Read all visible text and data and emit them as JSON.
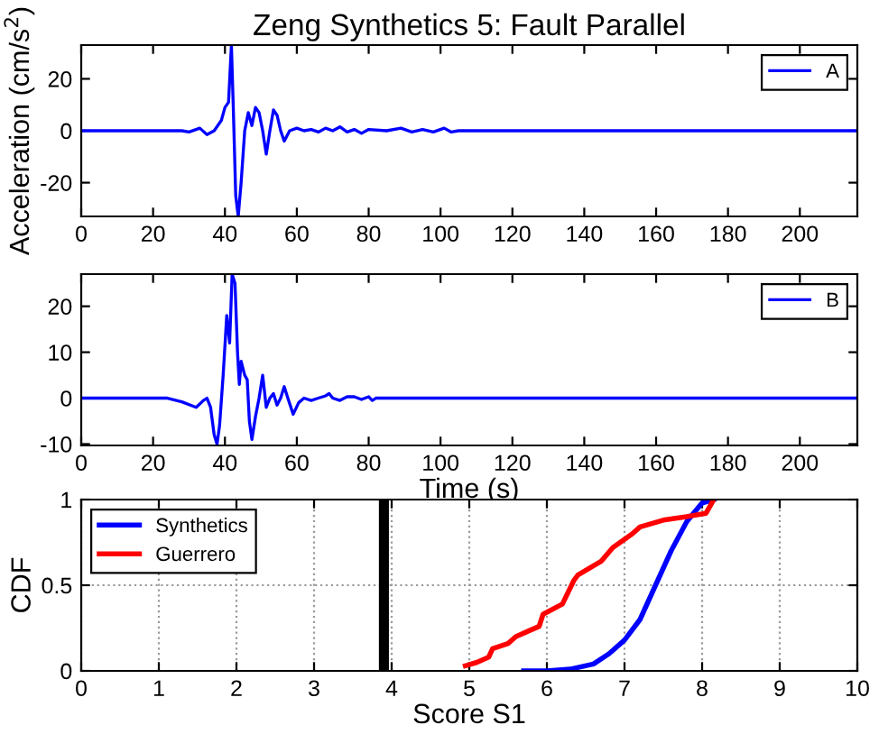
{
  "chart_data": [
    {
      "type": "line",
      "title": "Zeng Synthetics 5: Fault Parallel",
      "ylabel": "Acceleration (cm/s$^{2}$)",
      "xlim": [
        0,
        216
      ],
      "ylim": [
        -33,
        33
      ],
      "xticks": [
        0,
        20,
        40,
        60,
        80,
        100,
        120,
        140,
        160,
        180,
        200
      ],
      "yticks": [
        -20,
        0,
        20
      ],
      "legend": "top right",
      "grid": false,
      "series": [
        {
          "name": "A",
          "color": "#0000ff",
          "x": [
            0,
            28,
            30,
            33,
            35,
            37,
            39,
            40,
            41,
            41.8,
            42.3,
            43,
            43.7,
            44.5,
            45.5,
            46.5,
            47.5,
            48.5,
            49.5,
            50.5,
            51.5,
            52.5,
            53.5,
            54.5,
            55.5,
            56.5,
            58,
            60,
            62,
            64,
            66,
            68,
            70,
            72,
            74,
            76,
            78,
            80,
            85,
            89,
            92,
            95,
            98,
            101,
            103,
            105,
            216
          ],
          "values": [
            0,
            0,
            -0.5,
            1,
            -1.5,
            0,
            4,
            9,
            11,
            33,
            10,
            -25,
            -33,
            -20,
            0,
            7,
            2,
            9,
            7,
            0,
            -9,
            0,
            8,
            6,
            0,
            -4,
            0,
            1,
            0,
            0.5,
            -0.5,
            1,
            0,
            1.5,
            -0.5,
            0.5,
            -1,
            0.5,
            0,
            1,
            -0.5,
            0.5,
            -0.5,
            1,
            -0.5,
            0,
            0
          ]
        }
      ]
    },
    {
      "type": "line",
      "xlabel": "Time (s)",
      "xlim": [
        0,
        216
      ],
      "ylim": [
        -10.3,
        27
      ],
      "xticks": [
        0,
        20,
        40,
        60,
        80,
        100,
        120,
        140,
        160,
        180,
        200
      ],
      "yticks": [
        -10,
        0,
        10,
        20
      ],
      "legend": "top right",
      "grid": false,
      "series": [
        {
          "name": "B",
          "color": "#0000ff",
          "x": [
            0,
            24,
            28,
            32,
            34,
            35,
            36,
            37,
            37.8,
            38.5,
            39.5,
            40.5,
            41.3,
            42,
            42.8,
            43.5,
            44,
            44.5,
            45.5,
            46.2,
            46.8,
            47.5,
            48.5,
            49.5,
            50.5,
            51.5,
            52.5,
            53.5,
            54.5,
            55.5,
            56.5,
            57.5,
            59,
            60.5,
            62,
            64,
            66,
            68,
            69,
            70,
            72,
            74,
            76,
            78,
            80,
            81,
            82,
            216
          ],
          "values": [
            0,
            0,
            -0.8,
            -2,
            -0.5,
            0,
            -2,
            -8,
            -10,
            -6,
            5,
            18,
            12,
            27,
            25,
            10,
            3,
            8,
            5,
            4,
            -5,
            -9,
            -4,
            0,
            5,
            -2,
            0,
            1,
            -1.5,
            0,
            2.5,
            0,
            -3.5,
            -1,
            0,
            -0.5,
            0,
            0.5,
            1,
            0,
            -0.5,
            0.3,
            0.3,
            -0.3,
            0.3,
            -0.5,
            0,
            0
          ]
        }
      ]
    },
    {
      "type": "line",
      "xlabel": "Score S1",
      "ylabel": "CDF",
      "xlim": [
        0,
        10
      ],
      "ylim": [
        0,
        1
      ],
      "xticks": [
        0,
        1,
        2,
        3,
        4,
        5,
        6,
        7,
        8,
        9,
        10
      ],
      "yticks": [
        0,
        0.5,
        1
      ],
      "legend": "top left",
      "grid": true,
      "ref_lines": [
        {
          "axis": "x",
          "value": 3.9,
          "color": "#000000"
        }
      ],
      "series": [
        {
          "name": "Synthetics",
          "color": "#0000ff",
          "x": [
            5.7,
            6,
            6.3,
            6.6,
            6.8,
            7,
            7.2,
            7.4,
            7.6,
            7.8,
            8,
            8.15
          ],
          "values": [
            0,
            0,
            0.01,
            0.04,
            0.1,
            0.18,
            0.3,
            0.5,
            0.7,
            0.87,
            0.98,
            1
          ]
        },
        {
          "name": "Guerrero",
          "color": "#ff0000",
          "x": [
            4.95,
            5.1,
            5.25,
            5.3,
            5.5,
            5.6,
            5.8,
            5.9,
            5.95,
            6.2,
            6.35,
            6.4,
            6.7,
            6.85,
            7.1,
            7.2,
            7.5,
            7.8,
            8.05,
            8.15
          ],
          "values": [
            0.03,
            0.05,
            0.08,
            0.13,
            0.16,
            0.2,
            0.24,
            0.26,
            0.33,
            0.39,
            0.53,
            0.56,
            0.64,
            0.72,
            0.8,
            0.84,
            0.88,
            0.9,
            0.92,
            1
          ]
        }
      ]
    }
  ]
}
